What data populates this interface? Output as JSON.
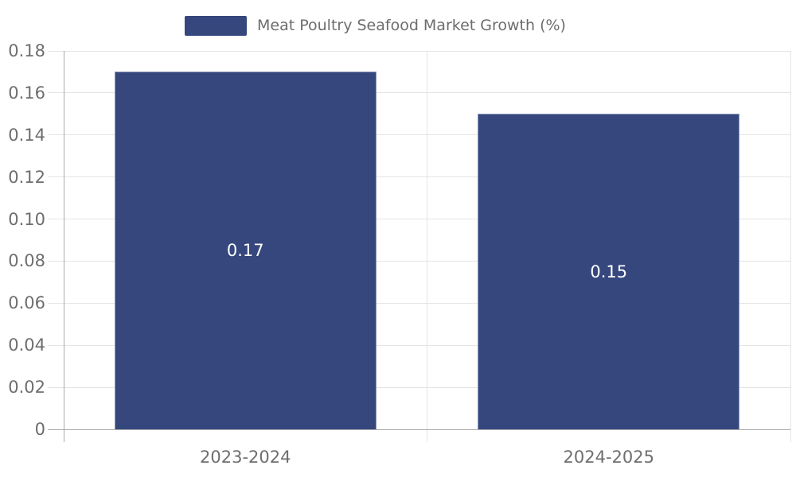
{
  "chart_data": {
    "type": "bar",
    "title": "Meat Poultry Seafood Market Growth (%)",
    "categories": [
      "2023-2024",
      "2024-2025"
    ],
    "values": [
      0.17,
      0.15
    ],
    "value_labels": [
      "0.17",
      "0.15"
    ],
    "xlabel": "",
    "ylabel": "",
    "ylim": [
      0,
      0.18
    ],
    "ytick_step": 0.02,
    "yticks": [
      0,
      0.02,
      0.04,
      0.06,
      0.08,
      0.1,
      0.12,
      0.14,
      0.16,
      0.18
    ],
    "ytick_labels": [
      "0",
      "0.02",
      "0.04",
      "0.06",
      "0.08",
      "0.10",
      "0.12",
      "0.14",
      "0.16",
      "0.18"
    ],
    "grid": true,
    "legend_position": "top-center",
    "colors": {
      "bar": "#35477d",
      "bar_border": "#8d97b8",
      "grid": "#e4e4e4",
      "axis": "#ababab",
      "tick_text": "#6e6e6e",
      "legend_text": "#6d6d6d",
      "data_label": "#ffffff",
      "background": "#ffffff"
    }
  }
}
